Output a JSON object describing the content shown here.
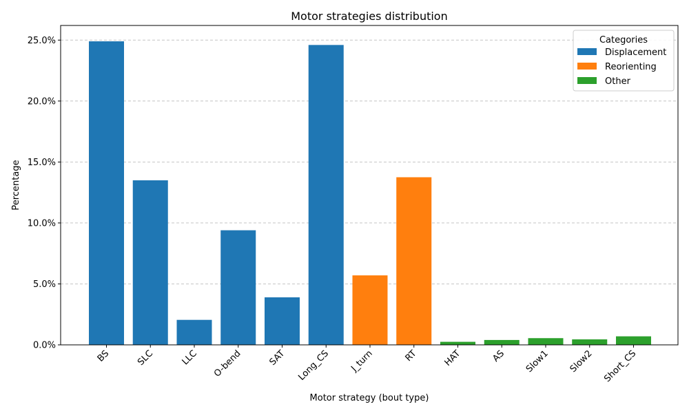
{
  "chart_data": {
    "type": "bar",
    "title": "Motor strategies distribution",
    "xlabel": "Motor strategy (bout type)",
    "ylabel": "Percentage",
    "ylim": [
      0,
      26.2
    ],
    "yticks": [
      0,
      5,
      10,
      15,
      20,
      25
    ],
    "ytick_labels": [
      "0.0%",
      "5.0%",
      "10.0%",
      "15.0%",
      "20.0%",
      "25.0%"
    ],
    "grid": "y-dashed",
    "legend_position": "top-right",
    "legend_title": "Categories",
    "categories": [
      "BS",
      "SLC",
      "LLC",
      "O-bend",
      "SAT",
      "Long_CS",
      "J_turn",
      "RT",
      "HAT",
      "AS",
      "Slow1",
      "Slow2",
      "Short_CS"
    ],
    "values": [
      24.9,
      13.5,
      2.05,
      9.4,
      3.9,
      24.6,
      5.7,
      13.75,
      0.25,
      0.4,
      0.55,
      0.45,
      0.7
    ],
    "bar_groups": [
      "Displacement",
      "Displacement",
      "Displacement",
      "Displacement",
      "Displacement",
      "Displacement",
      "Reorienting",
      "Reorienting",
      "Other",
      "Other",
      "Other",
      "Other",
      "Other"
    ],
    "legend": [
      {
        "name": "Displacement",
        "color": "#1f77b4"
      },
      {
        "name": "Reorienting",
        "color": "#ff7f0e"
      },
      {
        "name": "Other",
        "color": "#2ca02c"
      }
    ]
  }
}
